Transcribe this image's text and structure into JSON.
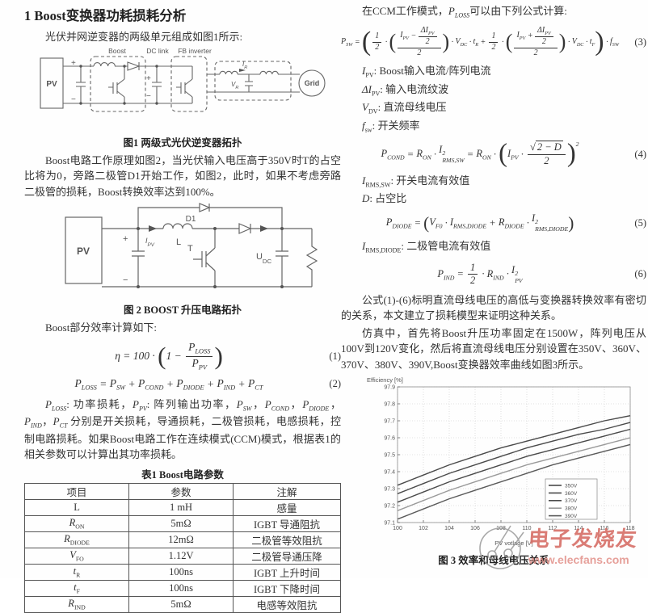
{
  "left": {
    "section_title": "1 Boost变换器功耗损耗分析",
    "para1": "光伏并网逆变器的两级单元组成如图1所示:",
    "fig1": {
      "caption": "图1 两级式光伏逆变器拓扑",
      "labels": {
        "boost": "Boost",
        "dclink": "DC link",
        "fb": "FB inverter",
        "pv": "PV",
        "grid": "Grid",
        "ir": {
          "base": "I",
          "sub": "R"
        },
        "vr": {
          "base": "V",
          "sub": "R"
        },
        "plus": "+",
        "minus": "−"
      }
    },
    "para2": "Boost电路工作原理如图2，当光伏输入电压高于350V时T的占空比将为0，旁路二极管D1开始工作，如图2，此时，如果不考虑旁路二极管的损耗，Boost转换效率达到100%。",
    "fig2": {
      "caption": "图 2 BOOST 升压电路拓扑",
      "labels": {
        "pv": "PV",
        "d1": "D1",
        "l": "L",
        "t": "T",
        "ipv": {
          "base": "I",
          "sub": "PV"
        },
        "udc": {
          "base": "U",
          "sub": "DC"
        },
        "plus": "+",
        "minus": "−"
      }
    },
    "para3": "Boost部分效率计算如下:",
    "eq1": {
      "num": "(1)",
      "tokens": [
        {
          "t": "v",
          "v": "η"
        },
        {
          "t": "txt",
          "v": " = 100 · "
        },
        {
          "t": "par",
          "big": 2.3,
          "items": [
            {
              "t": "txt",
              "v": "1 − "
            },
            {
              "t": "frac",
              "num": [
                {
                  "t": "v",
                  "v": "P",
                  "sub": "LOSS"
                }
              ],
              "den": [
                {
                  "t": "v",
                  "v": "P",
                  "sub": "PV"
                }
              ]
            }
          ]
        }
      ]
    },
    "eq2": {
      "num": "(2)",
      "tokens": [
        {
          "t": "v",
          "v": "P",
          "sub": "LOSS"
        },
        {
          "t": "txt",
          "v": " = "
        },
        {
          "t": "v",
          "v": "P",
          "sub": "SW"
        },
        {
          "t": "txt",
          "v": " + "
        },
        {
          "t": "v",
          "v": "P",
          "sub": "COND"
        },
        {
          "t": "txt",
          "v": " + "
        },
        {
          "t": "v",
          "v": "P",
          "sub": "DIODE"
        },
        {
          "t": "txt",
          "v": " + "
        },
        {
          "t": "v",
          "v": "P",
          "sub": "IND"
        },
        {
          "t": "txt",
          "v": " + "
        },
        {
          "t": "v",
          "v": "P",
          "sub": "CT"
        }
      ]
    },
    "para4_tokens": [
      {
        "t": "v",
        "v": "P",
        "sub": "LOSS"
      },
      {
        "t": "txt",
        "v": ": 功率损耗，"
      },
      {
        "t": "v",
        "v": "P",
        "sub": "PV"
      },
      {
        "t": "txt",
        "v": ": 阵列输出功率，"
      },
      {
        "t": "v",
        "v": "P",
        "sub": "SW"
      },
      {
        "t": "txt",
        "v": "，"
      },
      {
        "t": "v",
        "v": "P",
        "sub": "COND"
      },
      {
        "t": "txt",
        "v": "，"
      },
      {
        "t": "v",
        "v": "P",
        "sub": "DIODE"
      },
      {
        "t": "txt",
        "v": "，"
      },
      {
        "t": "v",
        "v": "P",
        "sub": "IND"
      },
      {
        "t": "txt",
        "v": "，"
      },
      {
        "t": "v",
        "v": "P",
        "sub": "CT"
      },
      {
        "t": "txt",
        "v": " 分别是开关损耗，导通损耗，二极管损耗，电感损耗，控制电路损耗。如果Boost电路工作在连续模式(CCM)模式，根据表1的相关参数可以计算出其功率损耗。"
      }
    ],
    "table": {
      "title": "表1 Boost电路参数",
      "headers": [
        "项目",
        "参数",
        "注解"
      ],
      "rows": [
        {
          "item": [
            {
              "t": "txt",
              "v": "L"
            }
          ],
          "value": "1 mH",
          "note": "感量"
        },
        {
          "item": [
            {
              "t": "v",
              "v": "R",
              "sub": "ON"
            }
          ],
          "value": "5mΩ",
          "note": "IGBT 导通阻抗"
        },
        {
          "item": [
            {
              "t": "v",
              "v": "R",
              "sub": "DIODE"
            }
          ],
          "value": "12mΩ",
          "note": "二极管等效阻抗"
        },
        {
          "item": [
            {
              "t": "v",
              "v": "V",
              "sub": "FO"
            }
          ],
          "value": "1.12V",
          "note": "二极管导通压降"
        },
        {
          "item": [
            {
              "t": "v",
              "v": "t",
              "sub": "R"
            }
          ],
          "value": "100ns",
          "note": "IGBT 上升时间"
        },
        {
          "item": [
            {
              "t": "v",
              "v": "t",
              "sub": "F"
            }
          ],
          "value": "100ns",
          "note": "IGBT 下降时间"
        },
        {
          "item": [
            {
              "t": "v",
              "v": "R",
              "sub": "IND"
            }
          ],
          "value": "5mΩ",
          "note": "电感等效阻抗"
        }
      ]
    }
  },
  "right": {
    "para1_tokens": [
      {
        "t": "txt",
        "v": "在CCM工作模式，"
      },
      {
        "t": "v",
        "v": "P",
        "sub": "LOSS"
      },
      {
        "t": "txt",
        "v": "可以由下列公式计算:"
      }
    ],
    "eq3": {
      "num": "(3)",
      "tokens": [
        {
          "t": "v",
          "v": "P",
          "sub": "SW"
        },
        {
          "t": "txt",
          "v": " = "
        },
        {
          "t": "par",
          "big": 3.4,
          "items": [
            {
              "t": "frac",
              "num": [
                {
                  "t": "txt",
                  "v": "1"
                }
              ],
              "den": [
                {
                  "t": "txt",
                  "v": "2"
                }
              ]
            },
            {
              "t": "txt",
              "v": " · "
            },
            {
              "t": "par",
              "big": 2.6,
              "items": [
                {
                  "t": "frac",
                  "num": [
                    {
                      "t": "v",
                      "v": "I",
                      "sub": "PV"
                    },
                    {
                      "t": "txt",
                      "v": " − "
                    },
                    {
                      "t": "frac",
                      "num": [
                        {
                          "t": "v",
                          "v": "ΔI",
                          "sub": "PV"
                        }
                      ],
                      "den": [
                        {
                          "t": "txt",
                          "v": "2"
                        }
                      ]
                    }
                  ],
                  "den": [
                    {
                      "t": "txt",
                      "v": "2"
                    }
                  ]
                }
              ]
            },
            {
              "t": "txt",
              "v": " · "
            },
            {
              "t": "v",
              "v": "V",
              "sub": "DC"
            },
            {
              "t": "txt",
              "v": " · "
            },
            {
              "t": "v",
              "v": "t",
              "sub": "R"
            },
            {
              "t": "txt",
              "v": " + "
            },
            {
              "t": "frac",
              "num": [
                {
                  "t": "txt",
                  "v": "1"
                }
              ],
              "den": [
                {
                  "t": "txt",
                  "v": "2"
                }
              ]
            },
            {
              "t": "txt",
              "v": " · "
            },
            {
              "t": "par",
              "big": 2.6,
              "items": [
                {
                  "t": "frac",
                  "num": [
                    {
                      "t": "v",
                      "v": "I",
                      "sub": "PV"
                    },
                    {
                      "t": "txt",
                      "v": " + "
                    },
                    {
                      "t": "frac",
                      "num": [
                        {
                          "t": "v",
                          "v": "ΔI",
                          "sub": "PV"
                        }
                      ],
                      "den": [
                        {
                          "t": "txt",
                          "v": "2"
                        }
                      ]
                    }
                  ],
                  "den": [
                    {
                      "t": "txt",
                      "v": "2"
                    }
                  ]
                }
              ]
            },
            {
              "t": "txt",
              "v": " · "
            },
            {
              "t": "v",
              "v": "V",
              "sub": "DC"
            },
            {
              "t": "txt",
              "v": " · "
            },
            {
              "t": "v",
              "v": "t",
              "sub": "F"
            }
          ]
        },
        {
          "t": "txt",
          "v": " · "
        },
        {
          "t": "v",
          "v": "f",
          "sub": "SW"
        }
      ]
    },
    "defs1": [
      [
        {
          "t": "v",
          "v": "I",
          "sub": "PV"
        },
        {
          "t": "txt",
          "v": ": Boost输入电流/阵列电流"
        }
      ],
      [
        {
          "t": "v",
          "v": "ΔI",
          "sub": "PV"
        },
        {
          "t": "txt",
          "v": ": 输入电流纹波"
        }
      ],
      [
        {
          "t": "v",
          "v": "V",
          "sub": "DV"
        },
        {
          "t": "txt",
          "v": ": 直流母线电压"
        }
      ],
      [
        {
          "t": "v",
          "v": "f",
          "sub": "sw"
        },
        {
          "t": "txt",
          "v": ": 开关频率"
        }
      ]
    ],
    "eq4": {
      "num": "(4)",
      "tokens": [
        {
          "t": "v",
          "v": "P",
          "sub": "COND"
        },
        {
          "t": "txt",
          "v": " = "
        },
        {
          "t": "v",
          "v": "R",
          "sub": "ON"
        },
        {
          "t": "txt",
          "v": " · "
        },
        {
          "t": "v",
          "v": "I",
          "sup": "2",
          "sub": "RMS,SW"
        },
        {
          "t": "txt",
          "v": " = "
        },
        {
          "t": "v",
          "v": "R",
          "sub": "ON"
        },
        {
          "t": "txt",
          "v": " · "
        },
        {
          "t": "par",
          "big": 2.6,
          "sup": "2",
          "items": [
            {
              "t": "v",
              "v": "I",
              "sub": "PV"
            },
            {
              "t": "txt",
              "v": " · "
            },
            {
              "t": "frac",
              "num": [
                {
                  "t": "sqrt",
                  "items": [
                    {
                      "t": "txt",
                      "v": "2 − D"
                    }
                  ]
                }
              ],
              "den": [
                {
                  "t": "txt",
                  "v": "2"
                }
              ]
            }
          ]
        }
      ]
    },
    "defs2": [
      [
        {
          "t": "v",
          "v": "I",
          "sub": "RMS,SW"
        },
        {
          "t": "txt",
          "v": ": 开关电流有效值"
        }
      ],
      [
        {
          "t": "v",
          "v": "D"
        },
        {
          "t": "txt",
          "v": ": 占空比"
        }
      ]
    ],
    "eq5": {
      "num": "(5)",
      "tokens": [
        {
          "t": "v",
          "v": "P",
          "sub": "DIODE"
        },
        {
          "t": "txt",
          "v": " = "
        },
        {
          "t": "par",
          "big": 1.7,
          "items": [
            {
              "t": "v",
              "v": "V",
              "sub": "F0"
            },
            {
              "t": "txt",
              "v": " · "
            },
            {
              "t": "v",
              "v": "I",
              "sub": "RMS,DIODE"
            },
            {
              "t": "txt",
              "v": " + "
            },
            {
              "t": "v",
              "v": "R",
              "sub": "DIODE"
            },
            {
              "t": "txt",
              "v": " · "
            },
            {
              "t": "v",
              "v": "I",
              "sup": "2",
              "sub": "RMS,DIODE"
            }
          ]
        }
      ]
    },
    "defs3": [
      [
        {
          "t": "v",
          "v": "I",
          "sub": "RMS,DIODE"
        },
        {
          "t": "txt",
          "v": ": 二极管电流有效值"
        }
      ]
    ],
    "eq6": {
      "num": "(6)",
      "tokens": [
        {
          "t": "v",
          "v": "P",
          "sub": "IND"
        },
        {
          "t": "txt",
          "v": " = "
        },
        {
          "t": "frac",
          "num": [
            {
              "t": "txt",
              "v": "1"
            }
          ],
          "den": [
            {
              "t": "txt",
              "v": "2"
            }
          ]
        },
        {
          "t": "txt",
          "v": " · "
        },
        {
          "t": "v",
          "v": "R",
          "sub": "IND"
        },
        {
          "t": "txt",
          "v": " · "
        },
        {
          "t": "v",
          "v": "I",
          "sup": "2",
          "sub": "PV"
        }
      ]
    },
    "para2": "公式(1)-(6)标明直流母线电压的高低与变换器转换效率有密切的关系，本文建立了损耗模型来证明这种关系。",
    "para3": "仿真中，首先将Boost升压功率固定在1500W，阵列电压从100V到120V变化，然后将直流母线电压分别设置在350V、360V、370V、380V、390V,Boost变换器效率曲线如图3所示。"
  },
  "chart_data": {
    "type": "line",
    "title": "图 3 效率和母线电压关系",
    "xlabel": "PV votlage [V]",
    "ylabel": "Efficiency [%]",
    "x": [
      100,
      102,
      104,
      106,
      108,
      110,
      112,
      114,
      116,
      118
    ],
    "xlim": [
      100,
      118
    ],
    "ylim": [
      97.1,
      97.9
    ],
    "yticks": [
      97.1,
      97.2,
      97.3,
      97.4,
      97.5,
      97.6,
      97.7,
      97.8,
      97.9
    ],
    "grid": true,
    "legend_position": "lower right",
    "series": [
      {
        "name": "350V",
        "color": "#4a4a4a",
        "values": [
          97.32,
          97.38,
          97.44,
          97.49,
          97.54,
          97.58,
          97.62,
          97.66,
          97.7,
          97.73
        ]
      },
      {
        "name": "360V",
        "color": "#4a4a4a",
        "values": [
          97.27,
          97.33,
          97.39,
          97.44,
          97.49,
          97.54,
          97.58,
          97.62,
          97.65,
          97.69
        ]
      },
      {
        "name": "370V",
        "color": "#4a4a4a",
        "values": [
          97.22,
          97.28,
          97.34,
          97.39,
          97.44,
          97.49,
          97.53,
          97.57,
          97.61,
          97.65
        ]
      },
      {
        "name": "380V",
        "color": "#9a9a9a",
        "values": [
          97.17,
          97.23,
          97.29,
          97.34,
          97.39,
          97.44,
          97.48,
          97.52,
          97.56,
          97.6
        ]
      },
      {
        "name": "390V",
        "color": "#5a5a5a",
        "values": [
          97.12,
          97.18,
          97.24,
          97.29,
          97.34,
          97.39,
          97.44,
          97.48,
          97.52,
          97.56
        ]
      }
    ]
  },
  "watermark": {
    "brand": "电子发烧友",
    "url": "www.elecfans.com",
    "brand_color": "#d4665e"
  }
}
